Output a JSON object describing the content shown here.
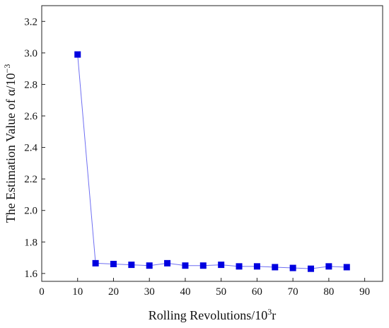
{
  "chart_data": {
    "type": "line",
    "xlabel": "Rolling Revolutions/10",
    "xlabel_sup": "3",
    "xlabel_tail": "r",
    "ylabel": "The Estimation Value of α/10",
    "ylabel_sup": "−3",
    "xlim": [
      0,
      95
    ],
    "ylim": [
      1.55,
      3.3
    ],
    "xticks": [
      0,
      10,
      20,
      30,
      40,
      50,
      60,
      70,
      80,
      90
    ],
    "yticks": [
      1.6,
      1.8,
      2.0,
      2.2,
      2.4,
      2.6,
      2.8,
      3.0,
      3.2
    ],
    "grid": false,
    "marker": "square",
    "series": [
      {
        "color": "#0000e0",
        "x": [
          10,
          15,
          20,
          25,
          30,
          35,
          40,
          45,
          50,
          55,
          60,
          65,
          70,
          75,
          80,
          85
        ],
        "y": [
          2.99,
          1.665,
          1.66,
          1.655,
          1.65,
          1.665,
          1.65,
          1.65,
          1.655,
          1.645,
          1.645,
          1.64,
          1.635,
          1.63,
          1.645,
          1.64
        ]
      }
    ]
  }
}
